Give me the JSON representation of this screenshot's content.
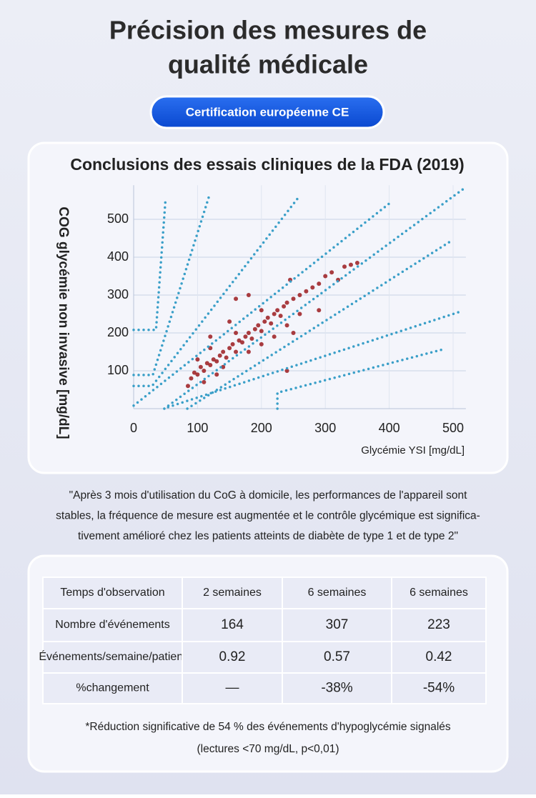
{
  "header": {
    "title_lines": [
      "Précision des mesures de",
      "qualité médicale"
    ],
    "badge": "Certification européenne CE"
  },
  "chart_data": {
    "type": "scatter",
    "title": "Conclusions des essais cliniques de la FDA (2019)",
    "x_label": "Glycémie YSI [mg/dL]",
    "y_label": "COG glycémie non invasive [mg/dL]",
    "xlim": [
      0,
      520
    ],
    "ylim": [
      0,
      590
    ],
    "xticks": [
      0,
      100,
      200,
      300,
      400,
      500
    ],
    "yticks": [
      100,
      200,
      300,
      400,
      500
    ],
    "grid": true,
    "series": [
      {
        "type": "scatter",
        "color": "#9b1b1e",
        "x": [
          90,
          95,
          100,
          105,
          110,
          115,
          120,
          125,
          130,
          135,
          140,
          145,
          150,
          155,
          160,
          165,
          170,
          175,
          180,
          185,
          190,
          195,
          200,
          205,
          210,
          215,
          220,
          225,
          230,
          235,
          240,
          250,
          260,
          270,
          280,
          290,
          300,
          310,
          320,
          330,
          340,
          350,
          100,
          120,
          140,
          160,
          180,
          200,
          220,
          240,
          260,
          160,
          180,
          85,
          110,
          130,
          200,
          250,
          245,
          290,
          240,
          150,
          120
        ],
        "y": [
          80,
          95,
          90,
          110,
          100,
          120,
          115,
          130,
          125,
          140,
          150,
          135,
          160,
          170,
          150,
          180,
          175,
          190,
          200,
          185,
          210,
          220,
          205,
          230,
          240,
          225,
          250,
          260,
          245,
          270,
          280,
          290,
          300,
          310,
          320,
          330,
          350,
          360,
          340,
          375,
          380,
          385,
          130,
          160,
          110,
          200,
          150,
          260,
          190,
          220,
          250,
          290,
          300,
          60,
          70,
          90,
          170,
          200,
          340,
          260,
          100,
          230,
          190
        ]
      },
      {
        "type": "line",
        "color": "#3a9fc8",
        "x": [
          0,
          35,
          50
        ],
        "y": [
          208,
          208,
          555
        ]
      },
      {
        "type": "line",
        "color": "#3a9fc8",
        "x": [
          0,
          30,
          119
        ],
        "y": [
          89,
          89,
          566
        ]
      },
      {
        "type": "line",
        "color": "#3a9fc8",
        "x": [
          0,
          29,
          258
        ],
        "y": [
          60,
          60,
          558
        ]
      },
      {
        "type": "line",
        "color": "#3a9fc8",
        "x": [
          0,
          404
        ],
        "y": [
          8,
          547
        ]
      },
      {
        "type": "line",
        "color": "#3a9fc8",
        "x": [
          48,
          515
        ],
        "y": [
          0,
          579
        ]
      },
      {
        "type": "line",
        "color": "#3a9fc8",
        "x": [
          84,
          496
        ],
        "y": [
          0,
          442
        ]
      },
      {
        "type": "line",
        "color": "#3a9fc8",
        "x": [
          54,
          509
        ],
        "y": [
          4,
          255
        ]
      },
      {
        "type": "line",
        "color": "#3a9fc8",
        "x": [
          225,
          225,
          485
        ],
        "y": [
          0,
          42,
          157
        ]
      }
    ]
  },
  "quote_lines": [
    "\"Après 3 mois d'utilisation du CoG à domicile, les performances de l'appareil sont",
    "stables, la fréquence de mesure est augmentée et le contrôle glycémique est significa-",
    "tivement amélioré chez les patients atteints de diabète de type 1 et de type 2\""
  ],
  "table": {
    "rows": [
      [
        "Temps d'observation",
        "2 semaines",
        "6 semaines",
        "6 semaines"
      ],
      [
        "Nombre d'événements",
        "164",
        "307",
        "223"
      ],
      [
        "Événements/semaine/patient",
        "0.92",
        "0.57",
        "0.42"
      ],
      [
        "%changement",
        "—",
        "-38%",
        "-54%"
      ]
    ]
  },
  "footnote_lines": [
    "*Réduction significative de 54 % des événements d'hypoglycémie signalés",
    "(lectures <70 mg/dL, p<0,01)"
  ]
}
